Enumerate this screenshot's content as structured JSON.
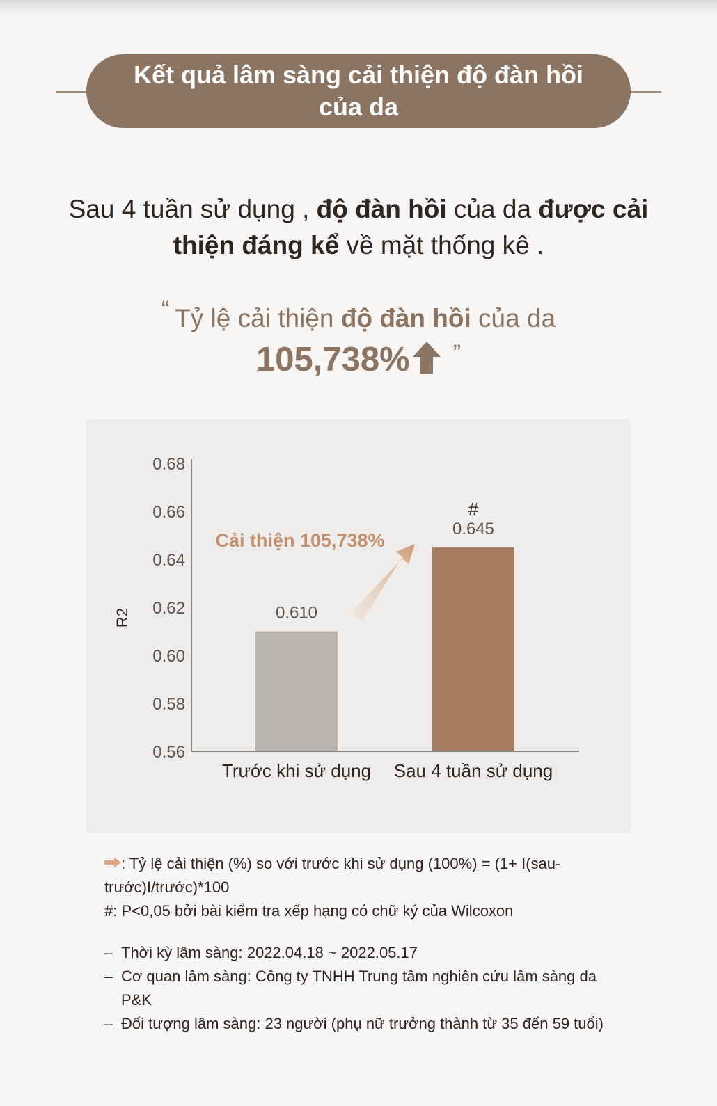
{
  "title": {
    "line1": "Kết quả lâm sàng cải thiện độ đàn hồi",
    "line2": "của da"
  },
  "headline": {
    "p1": "Sau 4 tuần sử dụng , ",
    "b1": "độ đàn hồi",
    "p2": " của da ",
    "b2": "được cải thiện đáng kể",
    "p3": " về mặt thống kê ."
  },
  "quote": {
    "open_mark": "“",
    "p1": "Tỷ lệ cải thiện ",
    "b1": "độ đàn hồi",
    "p2": " của da",
    "value": "105,738%",
    "close_mark": "”"
  },
  "chart_data": {
    "type": "bar",
    "categories": [
      "Trước khi sử dụng",
      "Sau 4 tuần sử dụng"
    ],
    "values": [
      0.61,
      0.645
    ],
    "value_labels": [
      "0.610",
      "0.645"
    ],
    "significance_marks": [
      "",
      "#"
    ],
    "ylabel": "R2",
    "ylim": [
      0.56,
      0.68
    ],
    "yticks": [
      "0.56",
      "0.58",
      "0.60",
      "0.62",
      "0.64",
      "0.66",
      "0.68"
    ],
    "annotation": "Cải thiện 105,738%",
    "bar_colors": [
      "#bab5b1",
      "#a67b61"
    ],
    "grid": false
  },
  "notes": {
    "formula": ": Tỷ lệ cải thiện (%) so với trước khi sử dụng (100%) = (1+ I(sau-trước)I/trước)*100",
    "significance": "#: P<0,05 bởi bài kiểm tra xếp hạng có chữ ký của Wilcoxon",
    "items": [
      "Thời kỳ lâm sàng: 2022.04.18 ~ 2022.05.17",
      "Cơ quan lâm sàng: Công ty TNHH Trung tâm nghiên cứu lâm sàng da P&K",
      "Đối tượng lâm sàng: 23 người (phụ nữ trưởng thành từ 35 đến 59 tuổi)"
    ]
  },
  "colors": {
    "accent": "#8c7463",
    "bar_before": "#bab5b1",
    "bar_after": "#a67b61",
    "background": "#f7f6f5",
    "chart_bg": "#efedeb"
  }
}
